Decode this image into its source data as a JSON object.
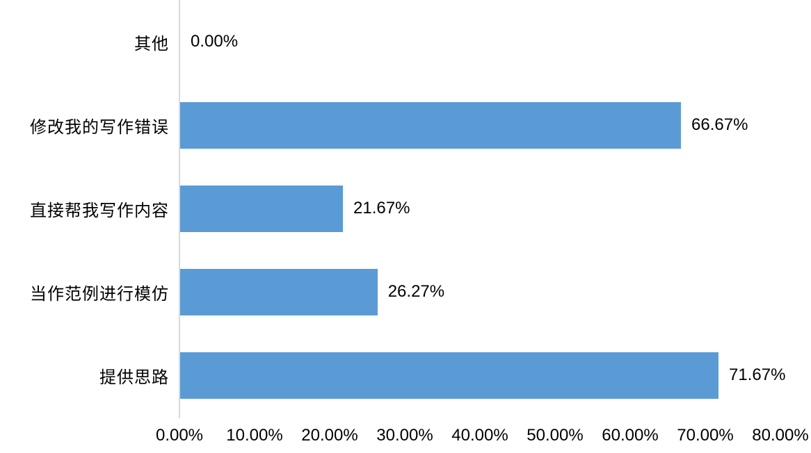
{
  "chart_data": {
    "type": "bar",
    "orientation": "horizontal",
    "title": "",
    "xlabel": "",
    "ylabel": "",
    "categories": [
      "其他",
      "修改我的写作错误",
      "直接帮我写作内容",
      "当作范例进行模仿",
      "提供思路"
    ],
    "values": [
      0.0,
      66.67,
      21.67,
      26.27,
      71.67
    ],
    "value_labels": [
      "0.00%",
      "66.67%",
      "21.67%",
      "26.27%",
      "71.67%"
    ],
    "x_tick_labels": [
      "0.00%",
      "10.00%",
      "20.00%",
      "30.00%",
      "40.00%",
      "50.00%",
      "60.00%",
      "70.00%",
      "80.00%"
    ],
    "xlim": [
      0,
      80
    ],
    "grid": "off",
    "legend": "none",
    "bar_color": "#5b9bd5",
    "axis_line_color": "#d9d9d9",
    "text_color": "#000000",
    "background_color": "#ffffff"
  }
}
